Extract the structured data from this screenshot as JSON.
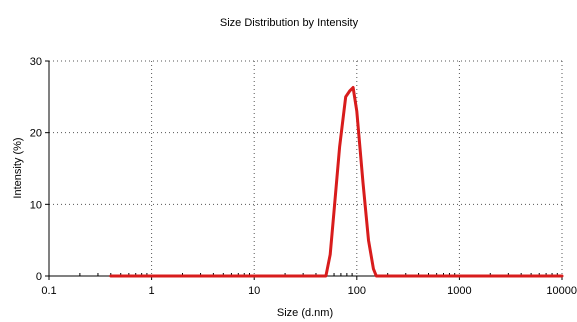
{
  "chart_data": {
    "type": "line",
    "title": "Size Distribution by Intensity",
    "xlabel": "Size (d.nm)",
    "ylabel": "Intensity (%)",
    "x_scale": "log",
    "xlim": [
      0.1,
      10000
    ],
    "ylim": [
      0,
      30
    ],
    "x_ticks": [
      0.1,
      1,
      10,
      100,
      1000,
      10000
    ],
    "x_tick_labels": [
      "0.1",
      "1",
      "10",
      "100",
      "1000",
      "10000"
    ],
    "y_ticks": [
      0,
      10,
      20,
      30
    ],
    "y_tick_labels": [
      "0",
      "10",
      "20",
      "30"
    ],
    "grid": true,
    "grid_style": "dotted",
    "legend": "none",
    "series": [
      {
        "color": "#d81c1c",
        "x": [
          0.4,
          10,
          30,
          50,
          55,
          60,
          68,
          78,
          85,
          92,
          100,
          115,
          130,
          145,
          155,
          170,
          300,
          1000,
          10000
        ],
        "y": [
          0,
          0,
          0,
          0,
          3,
          9,
          18,
          25,
          25.8,
          26.3,
          23,
          13,
          5,
          1,
          0,
          0,
          0,
          0,
          0
        ]
      }
    ]
  }
}
